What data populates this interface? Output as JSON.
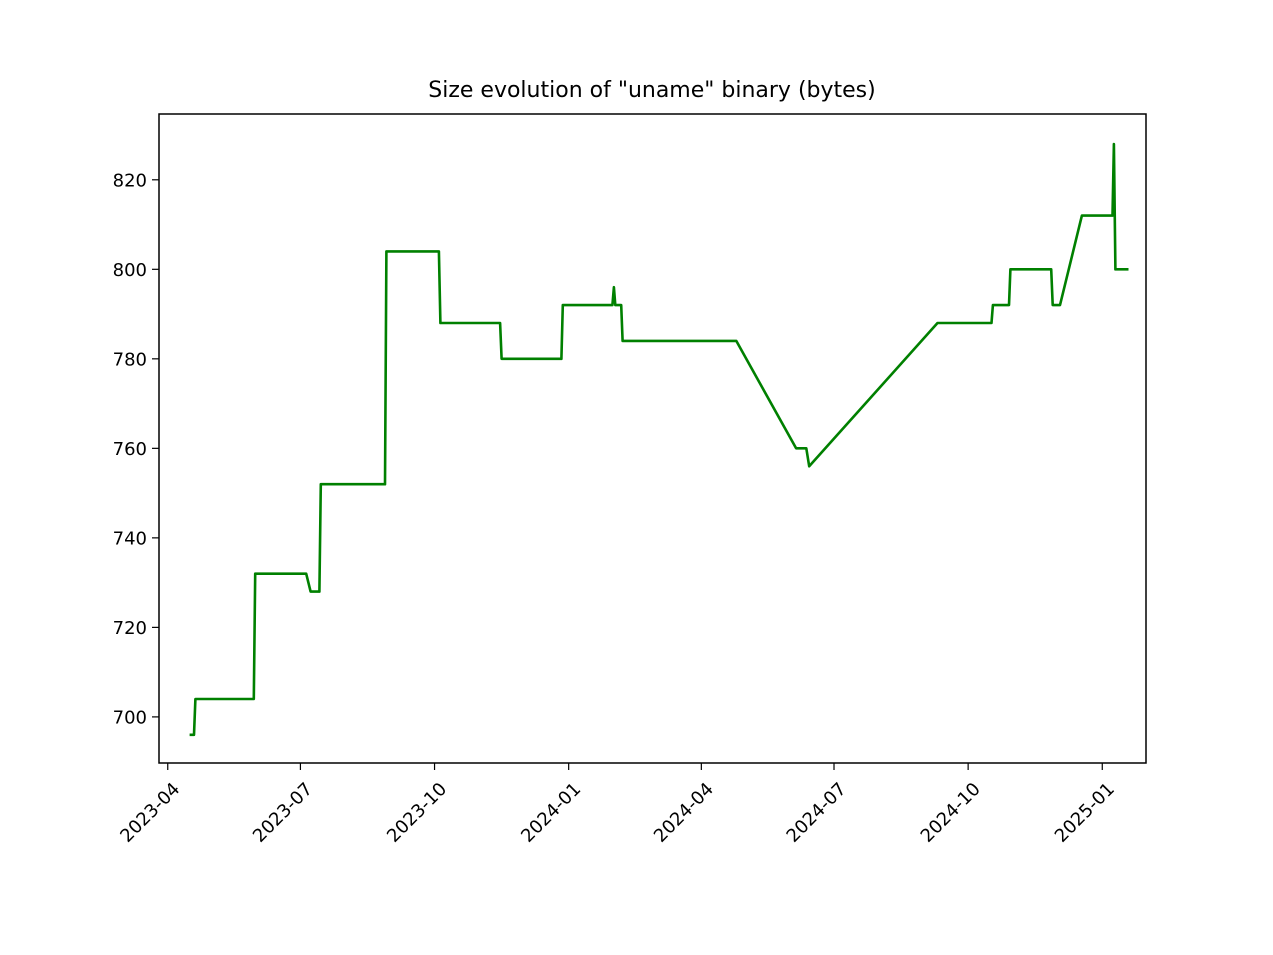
{
  "chart_data": {
    "type": "line",
    "title": "Size evolution of \"uname\" binary (bytes)",
    "xlabel": "",
    "ylabel": "",
    "x_axis_type": "date",
    "xlim": [
      "2023-03-26",
      "2025-01-31"
    ],
    "ylim": [
      689.7,
      834.7
    ],
    "yticks": [
      700,
      720,
      740,
      760,
      780,
      800,
      820
    ],
    "xticks": [
      "2023-04-01",
      "2023-07-01",
      "2023-10-01",
      "2024-01-01",
      "2024-04-01",
      "2024-07-01",
      "2024-10-01",
      "2025-01-01"
    ],
    "xtick_labels": [
      "2023-04",
      "2023-07",
      "2023-10",
      "2024-01",
      "2024-04",
      "2024-07",
      "2024-10",
      "2025-01"
    ],
    "grid": false,
    "legend": "none",
    "series": [
      {
        "color": "#008000",
        "x": [
          "2023-04-16",
          "2023-04-19",
          "2023-04-20",
          "2023-05-30",
          "2023-05-31",
          "2023-07-05",
          "2023-07-08",
          "2023-07-14",
          "2023-07-15",
          "2023-08-28",
          "2023-08-29",
          "2023-10-04",
          "2023-10-05",
          "2023-11-15",
          "2023-11-16",
          "2023-12-27",
          "2023-12-28",
          "2024-01-31",
          "2024-02-01",
          "2024-02-02",
          "2024-02-06",
          "2024-02-07",
          "2024-04-25",
          "2024-06-05",
          "2024-06-12",
          "2024-06-14",
          "2024-09-10",
          "2024-10-17",
          "2024-10-18",
          "2024-10-29",
          "2024-10-30",
          "2024-11-27",
          "2024-11-28",
          "2024-12-03",
          "2024-12-18",
          "2025-01-08",
          "2025-01-09",
          "2025-01-10",
          "2025-01-19"
        ],
        "y": [
          696,
          696,
          704,
          704,
          732,
          732,
          728,
          728,
          752,
          752,
          804,
          804,
          788,
          788,
          780,
          780,
          792,
          792,
          796,
          792,
          792,
          784,
          784,
          760,
          760,
          756,
          788,
          788,
          792,
          792,
          800,
          800,
          792,
          792,
          812,
          812,
          828,
          800,
          800
        ]
      }
    ]
  }
}
